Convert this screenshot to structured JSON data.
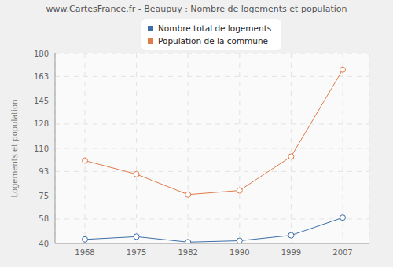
{
  "chart_data": {
    "type": "line",
    "title": "www.CartesFrance.fr - Beaupuy : Nombre de logements et population",
    "y_label": "Logements et population",
    "categories": [
      "1968",
      "1975",
      "1982",
      "1990",
      "1999",
      "2007"
    ],
    "series": [
      {
        "name": "Nombre total de logements",
        "color": "#3d6ea8",
        "values": [
          43,
          45,
          41,
          42,
          46,
          59
        ],
        "marker": "circle"
      },
      {
        "name": "Population de la commune",
        "color": "#e07b4a",
        "values": [
          101,
          91,
          76,
          79,
          104,
          168
        ],
        "marker": "circle"
      }
    ],
    "ylim": [
      40,
      180
    ],
    "yticks": [
      40,
      58,
      75,
      93,
      110,
      128,
      145,
      163,
      180
    ],
    "grid": true,
    "legend": "top"
  }
}
